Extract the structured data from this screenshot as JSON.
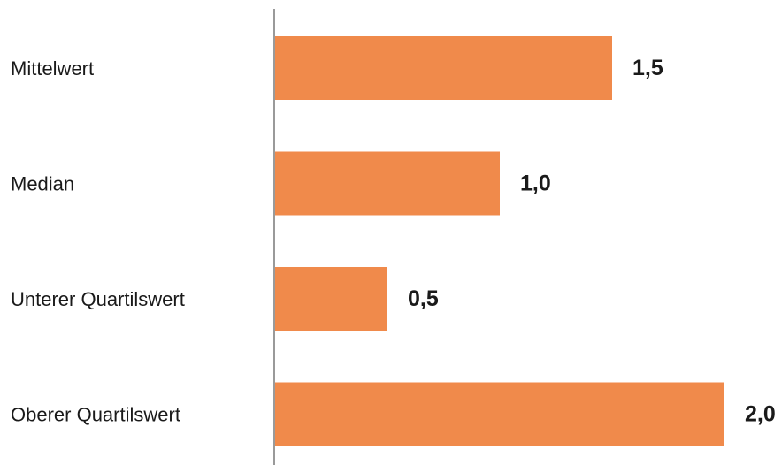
{
  "chart_data": {
    "type": "bar",
    "orientation": "horizontal",
    "categories": [
      "Mittelwert",
      "Median",
      "Unterer Quartilswert",
      "Oberer Quartilswert"
    ],
    "values": [
      1.5,
      1.0,
      0.5,
      2.0
    ],
    "value_labels": [
      "1,5",
      "1,0",
      "0,5",
      "2,0"
    ],
    "title": "",
    "xlabel": "",
    "ylabel": "",
    "xlim": [
      0,
      2
    ],
    "grid": false,
    "legend": "none",
    "colors": {
      "bar": "#F08A4B",
      "axis": "#9a9a9a"
    }
  }
}
